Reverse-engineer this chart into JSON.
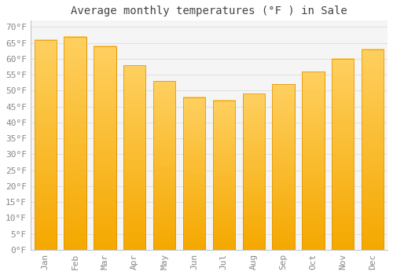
{
  "title": "Average monthly temperatures (°F ) in Sale",
  "months": [
    "Jan",
    "Feb",
    "Mar",
    "Apr",
    "May",
    "Jun",
    "Jul",
    "Aug",
    "Sep",
    "Oct",
    "Nov",
    "Dec"
  ],
  "values": [
    66,
    67,
    64,
    58,
    53,
    48,
    47,
    49,
    52,
    56,
    60,
    63
  ],
  "bar_color_top": "#FFD060",
  "bar_color_bottom": "#F5A800",
  "bar_edge_color": "#E09000",
  "background_color": "#FFFFFF",
  "plot_bg_color": "#F5F5F5",
  "grid_color": "#DDDDDD",
  "ytick_labels": [
    "0°F",
    "5°F",
    "10°F",
    "15°F",
    "20°F",
    "25°F",
    "30°F",
    "35°F",
    "40°F",
    "45°F",
    "50°F",
    "55°F",
    "60°F",
    "65°F",
    "70°F"
  ],
  "ytick_values": [
    0,
    5,
    10,
    15,
    20,
    25,
    30,
    35,
    40,
    45,
    50,
    55,
    60,
    65,
    70
  ],
  "ylim": [
    0,
    72
  ],
  "title_fontsize": 10,
  "tick_fontsize": 8,
  "tick_color": "#888888",
  "title_color": "#444444",
  "figsize": [
    5.0,
    3.5
  ],
  "dpi": 100
}
